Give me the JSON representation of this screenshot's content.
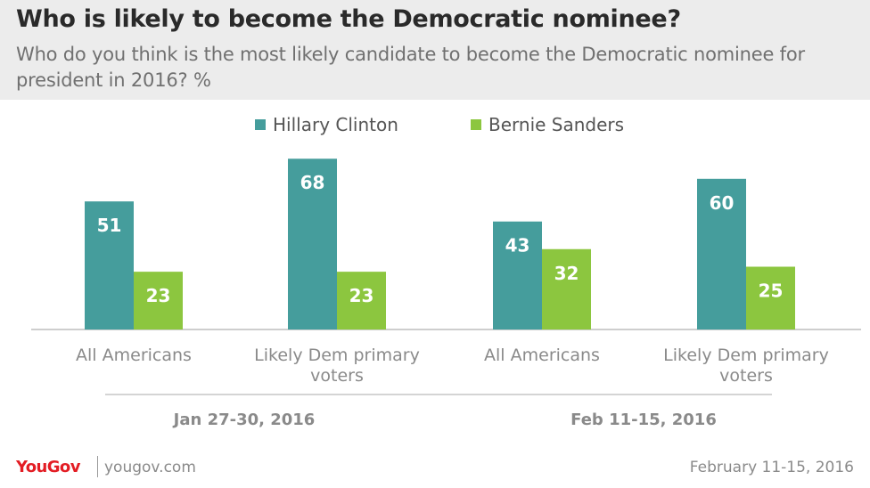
{
  "header": {
    "title": "Who is likely to become the Democratic nominee?",
    "subtitle": "Who do you think is the most likely candidate to become the Democratic nominee for president in 2016? %"
  },
  "colors": {
    "clinton": "#459d9c",
    "sanders": "#8cc63f",
    "header_bg": "#ececec",
    "brand_red": "#e31d24"
  },
  "chart_data": {
    "type": "bar",
    "title": "Who is likely to become the Democratic nominee?",
    "categories": [
      "All Americans",
      "Likely Dem primary voters",
      "All Americans",
      "Likely Dem primary voters"
    ],
    "category_lines": [
      [
        "All Americans"
      ],
      [
        "Likely Dem primary",
        "voters"
      ],
      [
        "All Americans"
      ],
      [
        "Likely Dem primary",
        "voters"
      ]
    ],
    "groups": [
      {
        "label": "Jan 27-30, 2016",
        "categories": [
          0,
          1
        ]
      },
      {
        "label": "Feb 11-15, 2016",
        "categories": [
          2,
          3
        ]
      }
    ],
    "series": [
      {
        "name": "Hillary Clinton",
        "color": "#459d9c",
        "values": [
          51,
          68,
          43,
          60
        ]
      },
      {
        "name": "Bernie Sanders",
        "color": "#8cc63f",
        "values": [
          23,
          23,
          32,
          25
        ]
      }
    ],
    "ylim": [
      0,
      100
    ],
    "grid": false,
    "legend_position": "top-center",
    "data_labels": true
  },
  "footer": {
    "brand": "YouGov",
    "url": "yougov.com",
    "date": "February 11-15, 2016"
  }
}
